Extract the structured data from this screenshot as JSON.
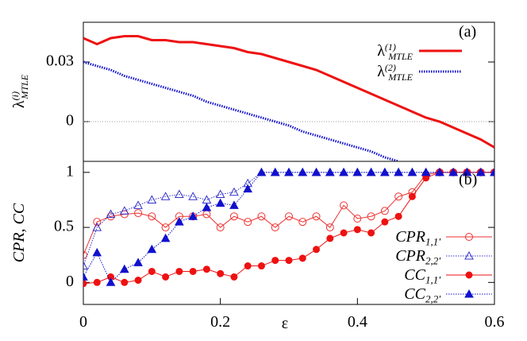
{
  "chart_data": [
    {
      "type": "line",
      "ylabel": "λ(i)MTLE",
      "annotation": "(a)",
      "xlim": [
        0,
        0.6
      ],
      "ylim": [
        -0.02,
        0.05
      ],
      "yticks": [
        0,
        0.03
      ],
      "hline": 0,
      "x": [
        0,
        0.02,
        0.04,
        0.06,
        0.08,
        0.1,
        0.12,
        0.14,
        0.16,
        0.18,
        0.2,
        0.22,
        0.24,
        0.26,
        0.28,
        0.3,
        0.32,
        0.34,
        0.36,
        0.38,
        0.4,
        0.42,
        0.44,
        0.46,
        0.48,
        0.5,
        0.52,
        0.54,
        0.56,
        0.58,
        0.6
      ],
      "series": [
        {
          "name": "λ(1)MTLE",
          "color": "#ee1111",
          "linestyle": "solid",
          "values": [
            0.042,
            0.039,
            0.042,
            0.043,
            0.043,
            0.041,
            0.041,
            0.04,
            0.04,
            0.039,
            0.038,
            0.037,
            0.035,
            0.034,
            0.032,
            0.03,
            0.028,
            0.026,
            0.023,
            0.02,
            0.017,
            0.014,
            0.011,
            0.008,
            0.005,
            0.002,
            0.0,
            -0.003,
            -0.006,
            -0.009,
            -0.013
          ]
        },
        {
          "name": "λ(2)MTLE",
          "color": "#1111cc",
          "linestyle": "dotted",
          "values": [
            0.03,
            0.028,
            0.026,
            0.023,
            0.021,
            0.019,
            0.017,
            0.015,
            0.013,
            0.01,
            0.008,
            0.006,
            0.004,
            0.002,
            0.0,
            -0.002,
            -0.005,
            -0.007,
            -0.009,
            -0.011,
            -0.013,
            -0.015,
            -0.018,
            -0.02,
            null,
            null,
            null,
            null,
            null,
            null,
            null
          ]
        }
      ]
    },
    {
      "type": "line",
      "ylabel": "CPR, CC",
      "xlabel": "ε",
      "annotation": "(b)",
      "xlim": [
        0,
        0.6
      ],
      "ylim": [
        -0.2,
        1.1
      ],
      "xticks": [
        0,
        0.2,
        0.4,
        0.6
      ],
      "yticks": [
        0,
        0.5,
        1
      ],
      "x": [
        0,
        0.02,
        0.04,
        0.06,
        0.08,
        0.1,
        0.12,
        0.14,
        0.16,
        0.18,
        0.2,
        0.22,
        0.24,
        0.26,
        0.28,
        0.3,
        0.32,
        0.34,
        0.36,
        0.38,
        0.4,
        0.42,
        0.44,
        0.46,
        0.48,
        0.5,
        0.52,
        0.54,
        0.56,
        0.58,
        0.6
      ],
      "series": [
        {
          "name": "CPR1,1'",
          "color": "#ee3333",
          "linestyle": "solid",
          "marker": "circle-open",
          "values": [
            0.25,
            0.55,
            0.6,
            0.62,
            0.63,
            0.6,
            0.5,
            0.6,
            0.6,
            0.62,
            0.5,
            0.6,
            0.55,
            0.6,
            0.5,
            0.6,
            0.55,
            0.6,
            0.5,
            0.7,
            0.58,
            0.6,
            0.65,
            0.78,
            0.82,
            0.98,
            1,
            1,
            1,
            1,
            1
          ]
        },
        {
          "name": "CPR2,2'",
          "color": "#3333cc",
          "linestyle": "dotted",
          "marker": "triangle-open",
          "values": [
            0.15,
            0.5,
            0.62,
            0.65,
            0.7,
            0.75,
            0.78,
            0.8,
            0.78,
            0.75,
            0.8,
            0.82,
            0.9,
            1,
            1,
            1,
            1,
            1,
            1,
            1,
            1,
            1,
            1,
            1,
            1,
            1,
            1,
            1,
            1,
            1,
            1
          ]
        },
        {
          "name": "CC1,1'",
          "color": "#ee1111",
          "linestyle": "solid",
          "marker": "circle",
          "values": [
            -0.01,
            0.0,
            0.05,
            0.0,
            0.02,
            0.1,
            0.05,
            0.1,
            0.1,
            0.12,
            0.08,
            0.05,
            0.15,
            0.15,
            0.2,
            0.2,
            0.22,
            0.3,
            0.4,
            0.45,
            0.48,
            0.45,
            0.55,
            0.6,
            0.78,
            0.95,
            1,
            1,
            1,
            1,
            1
          ]
        },
        {
          "name": "CC2,2'",
          "color": "#1111cc",
          "linestyle": "dotted",
          "marker": "triangle",
          "values": [
            0.05,
            0.27,
            0.0,
            0.12,
            0.18,
            0.3,
            0.4,
            0.55,
            0.6,
            0.68,
            0.72,
            0.7,
            0.85,
            1,
            1,
            1,
            1,
            1,
            1,
            1,
            1,
            1,
            1,
            1,
            1,
            1,
            1,
            1,
            1,
            1,
            1
          ]
        }
      ]
    }
  ]
}
